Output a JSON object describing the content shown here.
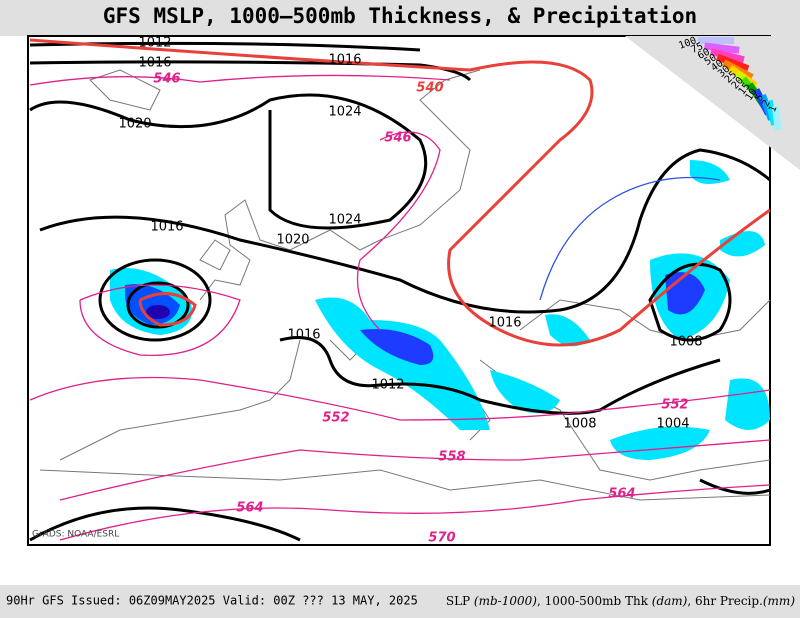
{
  "header": {
    "title": "GFS MSLP, 1000–500mb Thickness, & Precipitation"
  },
  "map": {
    "isobar_labels": [
      "1012",
      "1016",
      "1016",
      "1020",
      "1024",
      "1024",
      "1016",
      "1020",
      "1016",
      "1016",
      "1012",
      "1008",
      "1008",
      "1004"
    ],
    "thickness_labels": [
      "546",
      "540",
      "546",
      "552",
      "558",
      "552",
      "564",
      "564",
      "570"
    ],
    "credit": "GrADS: NOAA/ESRL"
  },
  "legend": {
    "labels": [
      "100",
      "75",
      "60",
      "50",
      "40",
      "30",
      "25",
      "20",
      "15",
      "10",
      "5",
      "2",
      "1"
    ]
  },
  "footer": {
    "left": "90Hr GFS Issued: 06Z09MAY2025 Valid: 00Z ??? 13 MAY, 2025",
    "right": [
      "SLP ",
      "(mb-1000)",
      ", 1000-500mb Thk ",
      "(dam)",
      ", 6hr Precip.",
      "(mm)"
    ]
  }
}
